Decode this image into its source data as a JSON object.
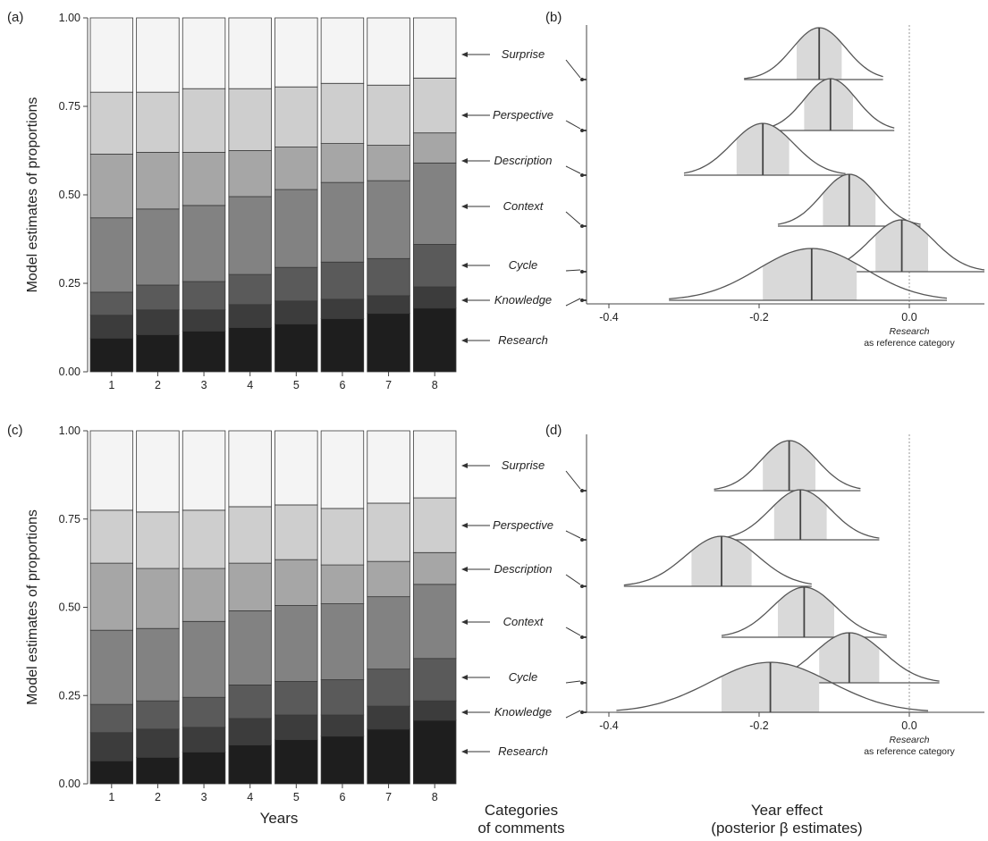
{
  "figure": {
    "bottom_labels": {
      "years": "Years",
      "categories_line1": "Categories",
      "categories_line2": "of comments",
      "effect_line1": "Year effect",
      "effect_line2": "(posterior β estimates)"
    }
  },
  "colors": {
    "Research": "#1e1e1e",
    "Knowledge": "#3c3c3c",
    "Cycle": "#5a5a5a",
    "Context": "#828282",
    "Description": "#a6a6a6",
    "Perspective": "#cecece",
    "Surprise": "#f4f4f4",
    "ci_band": "#d9d9d9"
  },
  "chart_data": [
    {
      "panel": "(a)",
      "type": "bar",
      "stacked": true,
      "ylabel": "Model estimates of proportions",
      "ylim": [
        0,
        1
      ],
      "yticks": [
        "0.00",
        "0.25",
        "0.50",
        "0.75",
        "1.00"
      ],
      "categories": [
        "1",
        "2",
        "3",
        "4",
        "5",
        "6",
        "7",
        "8"
      ],
      "series": [
        {
          "name": "Research",
          "values": [
            0.095,
            0.105,
            0.115,
            0.125,
            0.135,
            0.15,
            0.165,
            0.18
          ]
        },
        {
          "name": "Knowledge",
          "values": [
            0.065,
            0.07,
            0.06,
            0.065,
            0.065,
            0.055,
            0.05,
            0.06
          ]
        },
        {
          "name": "Cycle",
          "values": [
            0.065,
            0.07,
            0.08,
            0.085,
            0.095,
            0.105,
            0.105,
            0.12
          ]
        },
        {
          "name": "Context",
          "values": [
            0.21,
            0.215,
            0.215,
            0.22,
            0.22,
            0.225,
            0.22,
            0.23
          ]
        },
        {
          "name": "Description",
          "values": [
            0.18,
            0.16,
            0.15,
            0.13,
            0.12,
            0.11,
            0.1,
            0.085
          ]
        },
        {
          "name": "Perspective",
          "values": [
            0.175,
            0.17,
            0.18,
            0.175,
            0.17,
            0.17,
            0.17,
            0.155
          ]
        },
        {
          "name": "Surprise",
          "values": [
            0.21,
            0.21,
            0.2,
            0.2,
            0.195,
            0.185,
            0.19,
            0.17
          ]
        }
      ]
    },
    {
      "panel": "(b)",
      "type": "density",
      "xlim": [
        -0.43,
        0.1
      ],
      "xticks": [
        "-0.4",
        "-0.2",
        "0.0"
      ],
      "reference_line": 0,
      "reference_label_line1": "Research",
      "reference_label_line2": "as reference category",
      "series": [
        {
          "name": "Surprise",
          "median": -0.12,
          "ci": [
            -0.15,
            -0.09
          ],
          "range": [
            -0.22,
            -0.035
          ]
        },
        {
          "name": "Perspective",
          "median": -0.105,
          "ci": [
            -0.14,
            -0.075
          ],
          "range": [
            -0.2,
            -0.02
          ]
        },
        {
          "name": "Description",
          "median": -0.195,
          "ci": [
            -0.23,
            -0.16
          ],
          "range": [
            -0.3,
            -0.085
          ]
        },
        {
          "name": "Context",
          "median": -0.08,
          "ci": [
            -0.115,
            -0.045
          ],
          "range": [
            -0.175,
            0.015
          ]
        },
        {
          "name": "Cycle",
          "median": -0.01,
          "ci": [
            -0.045,
            0.025
          ],
          "range": [
            -0.12,
            0.1
          ]
        },
        {
          "name": "Knowledge",
          "median": -0.13,
          "ci": [
            -0.195,
            -0.07
          ],
          "range": [
            -0.32,
            0.05
          ]
        }
      ]
    },
    {
      "panel": "(c)",
      "type": "bar",
      "stacked": true,
      "xlabel": "Years",
      "ylabel": "Model estimates of proportions",
      "ylim": [
        0,
        1
      ],
      "yticks": [
        "0.00",
        "0.25",
        "0.50",
        "0.75",
        "1.00"
      ],
      "categories": [
        "1",
        "2",
        "3",
        "4",
        "5",
        "6",
        "7",
        "8"
      ],
      "series": [
        {
          "name": "Research",
          "values": [
            0.065,
            0.075,
            0.09,
            0.11,
            0.125,
            0.135,
            0.155,
            0.18
          ]
        },
        {
          "name": "Knowledge",
          "values": [
            0.08,
            0.08,
            0.07,
            0.075,
            0.07,
            0.06,
            0.065,
            0.055
          ]
        },
        {
          "name": "Cycle",
          "values": [
            0.08,
            0.08,
            0.085,
            0.095,
            0.095,
            0.1,
            0.105,
            0.12
          ]
        },
        {
          "name": "Context",
          "values": [
            0.21,
            0.205,
            0.215,
            0.21,
            0.215,
            0.215,
            0.205,
            0.21
          ]
        },
        {
          "name": "Description",
          "values": [
            0.19,
            0.17,
            0.15,
            0.135,
            0.13,
            0.11,
            0.1,
            0.09
          ]
        },
        {
          "name": "Perspective",
          "values": [
            0.15,
            0.16,
            0.165,
            0.16,
            0.155,
            0.16,
            0.165,
            0.155
          ]
        },
        {
          "name": "Surprise",
          "values": [
            0.225,
            0.23,
            0.225,
            0.215,
            0.21,
            0.22,
            0.205,
            0.19
          ]
        }
      ]
    },
    {
      "panel": "(d)",
      "type": "density",
      "xlabel": "Year effect (posterior β estimates)",
      "xlim": [
        -0.43,
        0.1
      ],
      "xticks": [
        "-0.4",
        "-0.2",
        "0.0"
      ],
      "reference_line": 0,
      "reference_label_line1": "Research",
      "reference_label_line2": "as reference category",
      "series": [
        {
          "name": "Surprise",
          "median": -0.16,
          "ci": [
            -0.195,
            -0.125
          ],
          "range": [
            -0.26,
            -0.065
          ]
        },
        {
          "name": "Perspective",
          "median": -0.145,
          "ci": [
            -0.18,
            -0.11
          ],
          "range": [
            -0.25,
            -0.04
          ]
        },
        {
          "name": "Description",
          "median": -0.25,
          "ci": [
            -0.29,
            -0.21
          ],
          "range": [
            -0.38,
            -0.13
          ]
        },
        {
          "name": "Context",
          "median": -0.14,
          "ci": [
            -0.175,
            -0.1
          ],
          "range": [
            -0.25,
            -0.03
          ]
        },
        {
          "name": "Cycle",
          "median": -0.08,
          "ci": [
            -0.12,
            -0.04
          ],
          "range": [
            -0.2,
            0.04
          ]
        },
        {
          "name": "Knowledge",
          "median": -0.185,
          "ci": [
            -0.25,
            -0.12
          ],
          "range": [
            -0.39,
            0.025
          ]
        }
      ]
    }
  ]
}
